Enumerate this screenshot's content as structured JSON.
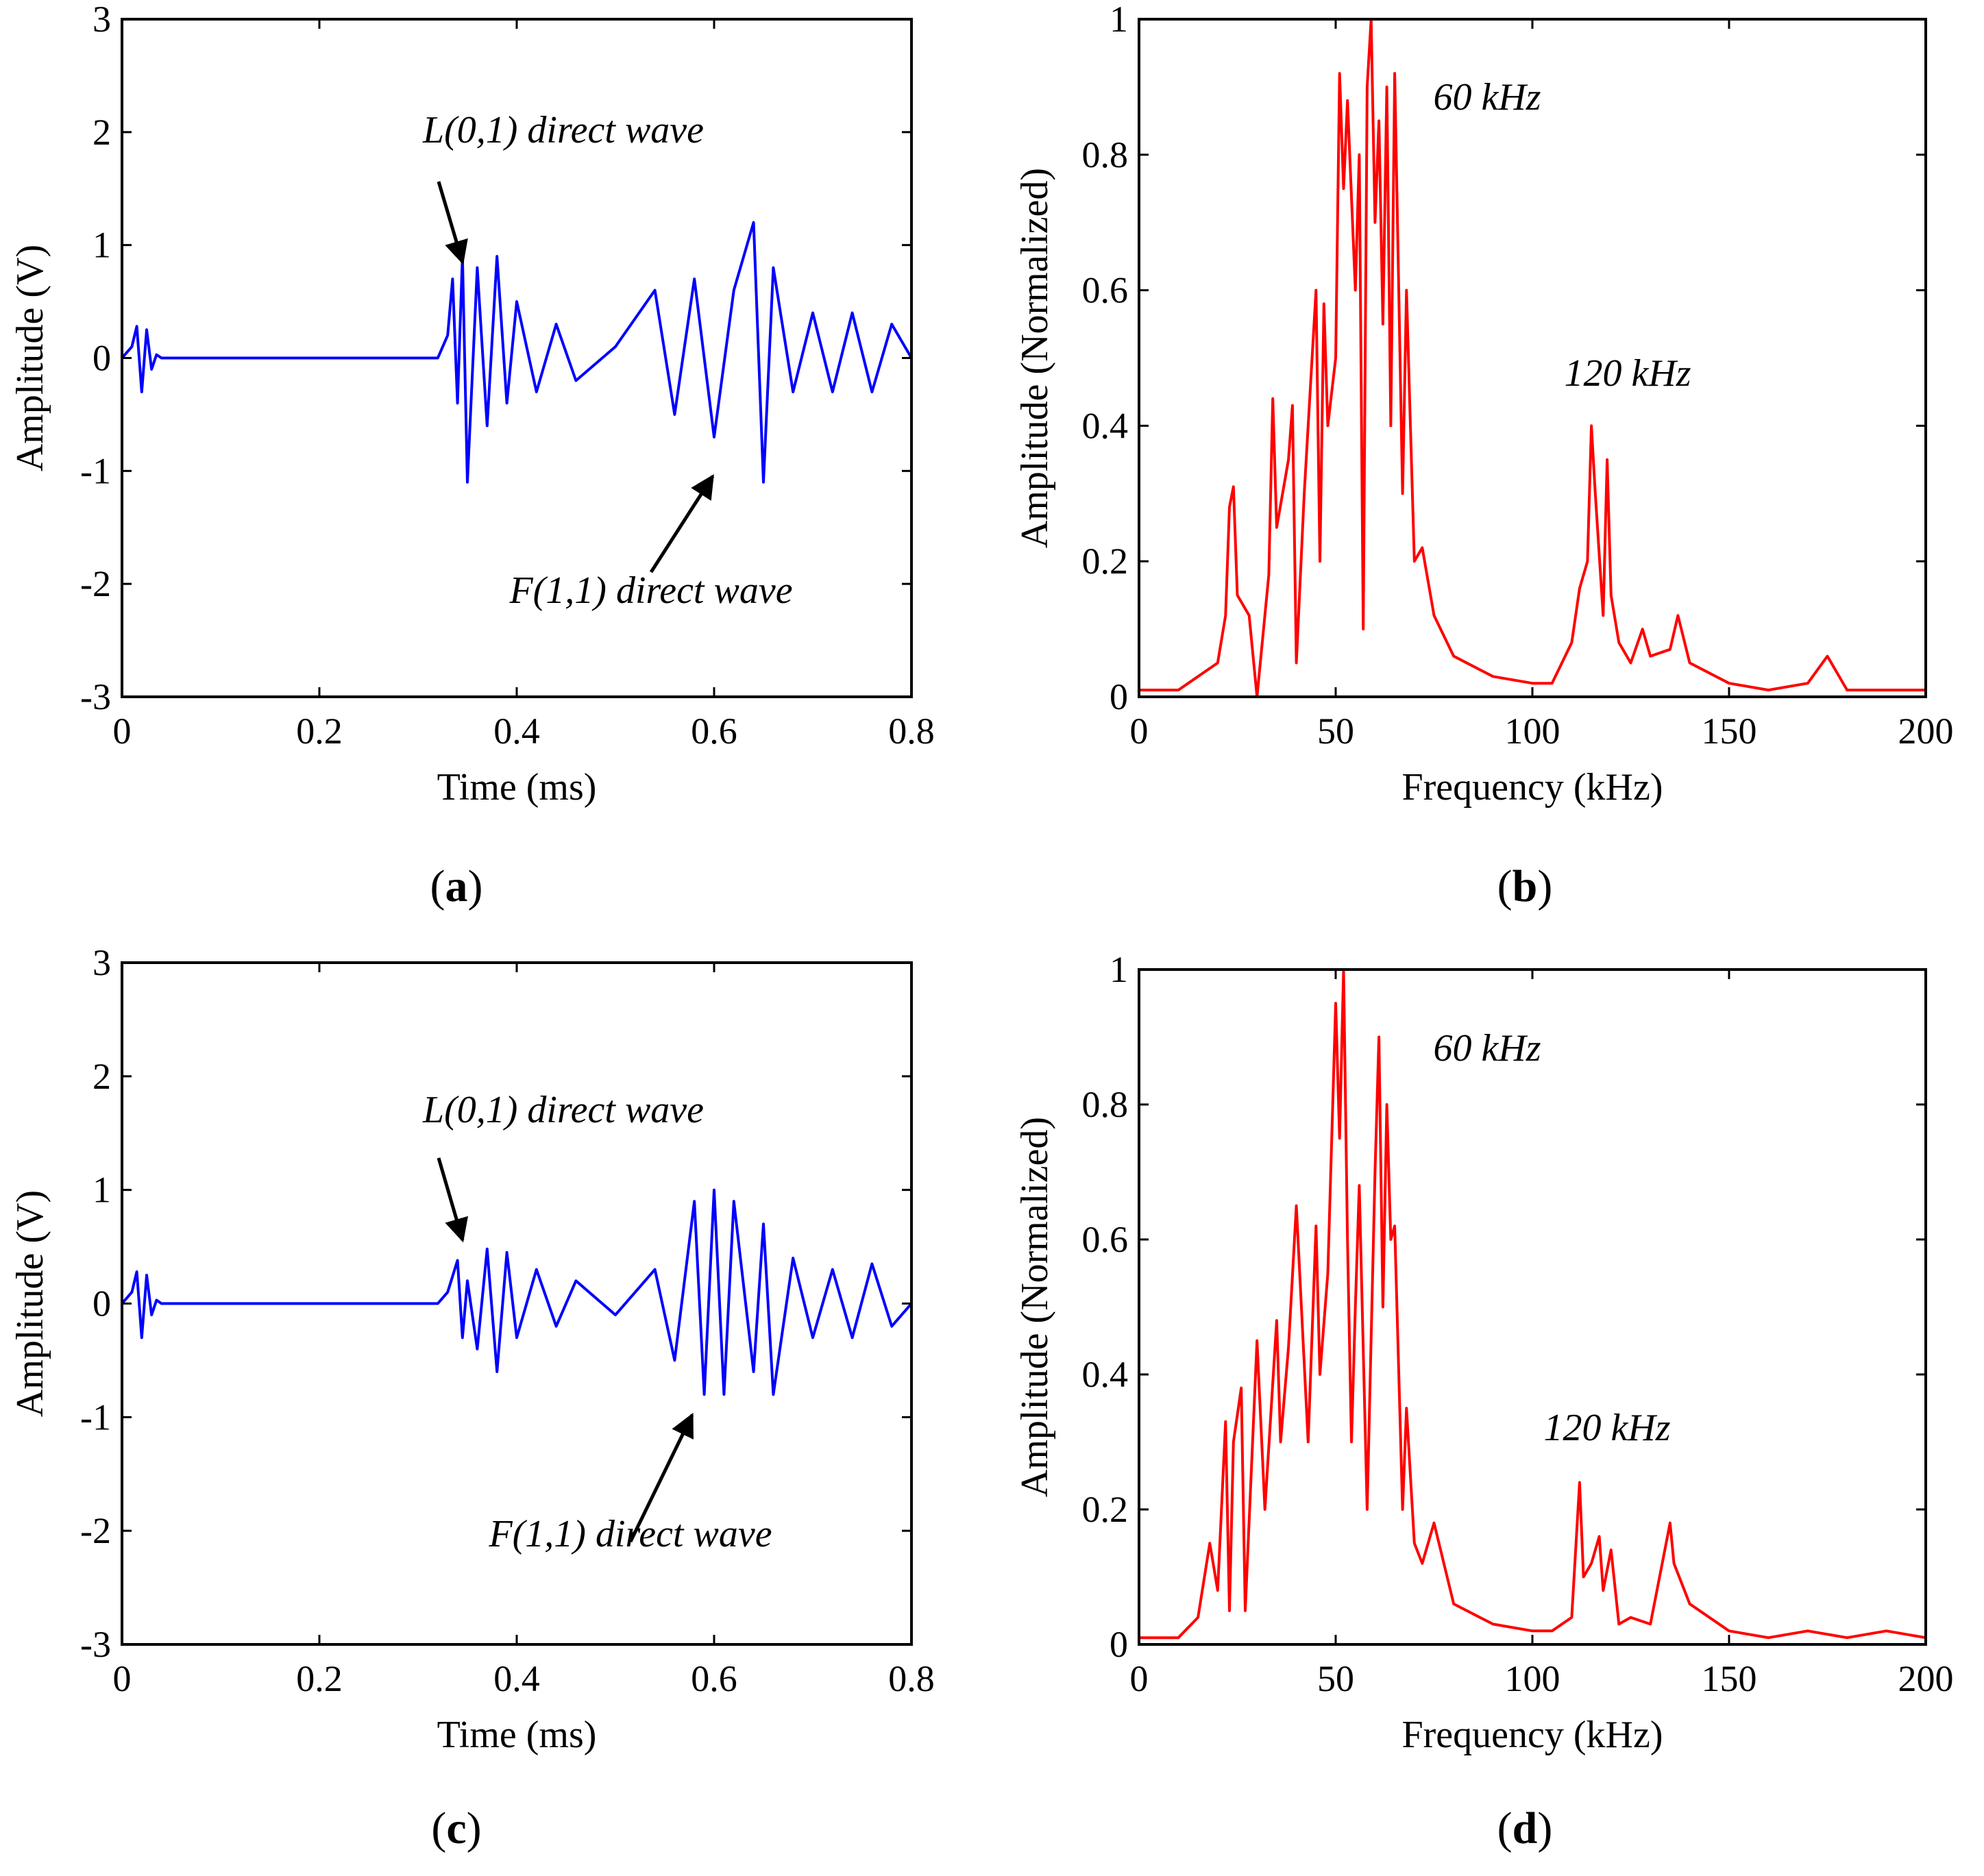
{
  "figure": {
    "panels": [
      {
        "id": "a",
        "caption_letter": "a"
      },
      {
        "id": "b",
        "caption_letter": "b"
      },
      {
        "id": "c",
        "caption_letter": "c"
      },
      {
        "id": "d",
        "caption_letter": "d"
      }
    ]
  },
  "colors": {
    "time_signal": "#0000ff",
    "spectrum": "#ff0000",
    "axes": "#000000"
  },
  "chart_data": [
    {
      "id": "a",
      "type": "line",
      "xlabel": "Time (ms)",
      "ylabel": "Amplitude (V)",
      "xlim": [
        0,
        0.8
      ],
      "ylim": [
        -3,
        3
      ],
      "xticks": [
        "0",
        "0.2",
        "0.4",
        "0.6",
        "0.8"
      ],
      "yticks": [
        "-3",
        "-2",
        "-1",
        "0",
        "1",
        "2",
        "3"
      ],
      "grid": false,
      "annotations": [
        {
          "text": "L(0,1) direct wave",
          "points_to": {
            "x": 0.34,
            "y": 0.85
          }
        },
        {
          "text": "F(1,1) direct wave",
          "points_to": {
            "x": 0.6,
            "y": -1.0
          }
        }
      ],
      "series": [
        {
          "color": "#0000ff",
          "x": [
            0.0,
            0.01,
            0.015,
            0.02,
            0.025,
            0.03,
            0.035,
            0.04,
            0.05,
            0.1,
            0.2,
            0.3,
            0.32,
            0.33,
            0.335,
            0.34,
            0.345,
            0.35,
            0.36,
            0.37,
            0.38,
            0.39,
            0.4,
            0.42,
            0.44,
            0.46,
            0.5,
            0.54,
            0.56,
            0.58,
            0.6,
            0.62,
            0.64,
            0.65,
            0.66,
            0.68,
            0.7,
            0.72,
            0.74,
            0.76,
            0.78,
            0.8
          ],
          "values": [
            0.0,
            0.1,
            0.28,
            -0.3,
            0.25,
            -0.1,
            0.03,
            0.0,
            0.0,
            0.0,
            0.0,
            0.0,
            0.0,
            0.2,
            0.7,
            -0.4,
            0.9,
            -1.1,
            0.8,
            -0.6,
            0.9,
            -0.4,
            0.5,
            -0.3,
            0.3,
            -0.2,
            0.1,
            0.6,
            -0.5,
            0.7,
            -0.7,
            0.6,
            1.2,
            -1.1,
            0.8,
            -0.3,
            0.4,
            -0.3,
            0.4,
            -0.3,
            0.3,
            0.0
          ]
        }
      ]
    },
    {
      "id": "b",
      "type": "line",
      "xlabel": "Frequency (kHz)",
      "ylabel": "Amplitude (Normalized)",
      "xlim": [
        0,
        200
      ],
      "ylim": [
        0,
        1
      ],
      "xticks": [
        "0",
        "50",
        "100",
        "150",
        "200"
      ],
      "yticks": [
        "0",
        "0.2",
        "0.4",
        "0.6",
        "0.8",
        "1"
      ],
      "grid": false,
      "annotations": [
        {
          "text": "60 kHz"
        },
        {
          "text": "120 kHz"
        }
      ],
      "series": [
        {
          "color": "#ff0000",
          "x": [
            0,
            10,
            15,
            20,
            22,
            23,
            24,
            25,
            28,
            30,
            33,
            34,
            35,
            38,
            39,
            40,
            42,
            45,
            46,
            47,
            48,
            50,
            51,
            52,
            53,
            55,
            56,
            57,
            58,
            59,
            60,
            61,
            62,
            63,
            64,
            65,
            67,
            68,
            70,
            72,
            75,
            80,
            90,
            100,
            105,
            110,
            112,
            114,
            115,
            116,
            118,
            119,
            120,
            122,
            125,
            128,
            130,
            135,
            137,
            140,
            150,
            160,
            170,
            175,
            180,
            200
          ],
          "values": [
            0.01,
            0.01,
            0.03,
            0.05,
            0.12,
            0.28,
            0.31,
            0.15,
            0.12,
            0.0,
            0.18,
            0.44,
            0.25,
            0.35,
            0.43,
            0.05,
            0.3,
            0.6,
            0.2,
            0.58,
            0.4,
            0.5,
            0.92,
            0.75,
            0.88,
            0.6,
            0.8,
            0.1,
            0.9,
            1.0,
            0.7,
            0.85,
            0.55,
            0.9,
            0.4,
            0.92,
            0.3,
            0.6,
            0.2,
            0.22,
            0.12,
            0.06,
            0.03,
            0.02,
            0.02,
            0.08,
            0.16,
            0.2,
            0.4,
            0.3,
            0.12,
            0.35,
            0.15,
            0.08,
            0.05,
            0.1,
            0.06,
            0.07,
            0.12,
            0.05,
            0.02,
            0.01,
            0.02,
            0.06,
            0.01,
            0.01
          ]
        }
      ]
    },
    {
      "id": "c",
      "type": "line",
      "xlabel": "Time (ms)",
      "ylabel": "Amplitude (V)",
      "xlim": [
        0,
        0.8
      ],
      "ylim": [
        -3,
        3
      ],
      "xticks": [
        "0",
        "0.2",
        "0.4",
        "0.6",
        "0.8"
      ],
      "yticks": [
        "-3",
        "-2",
        "-1",
        "0",
        "1",
        "2",
        "3"
      ],
      "grid": false,
      "annotations": [
        {
          "text": "L(0,1) direct wave",
          "points_to": {
            "x": 0.34,
            "y": 0.6
          }
        },
        {
          "text": "F(1,1) direct wave",
          "points_to": {
            "x": 0.58,
            "y": -0.9
          }
        }
      ],
      "series": [
        {
          "color": "#0000ff",
          "x": [
            0.0,
            0.01,
            0.015,
            0.02,
            0.025,
            0.03,
            0.035,
            0.04,
            0.05,
            0.1,
            0.2,
            0.3,
            0.32,
            0.33,
            0.34,
            0.345,
            0.35,
            0.36,
            0.37,
            0.38,
            0.39,
            0.4,
            0.42,
            0.44,
            0.46,
            0.5,
            0.54,
            0.56,
            0.58,
            0.59,
            0.6,
            0.61,
            0.62,
            0.64,
            0.65,
            0.66,
            0.68,
            0.7,
            0.72,
            0.74,
            0.76,
            0.78,
            0.8
          ],
          "values": [
            0.0,
            0.1,
            0.28,
            -0.3,
            0.25,
            -0.1,
            0.03,
            0.0,
            0.0,
            0.0,
            0.0,
            0.0,
            0.0,
            0.1,
            0.38,
            -0.3,
            0.2,
            -0.4,
            0.48,
            -0.6,
            0.45,
            -0.3,
            0.3,
            -0.2,
            0.2,
            -0.1,
            0.3,
            -0.5,
            0.9,
            -0.8,
            1.0,
            -0.8,
            0.9,
            -0.6,
            0.7,
            -0.8,
            0.4,
            -0.3,
            0.3,
            -0.3,
            0.35,
            -0.2,
            0.0
          ]
        }
      ]
    },
    {
      "id": "d",
      "type": "line",
      "xlabel": "Frequency (kHz)",
      "ylabel": "Amplitude (Normalized)",
      "xlim": [
        0,
        200
      ],
      "ylim": [
        0,
        1
      ],
      "xticks": [
        "0",
        "50",
        "100",
        "150",
        "200"
      ],
      "yticks": [
        "0",
        "0.2",
        "0.4",
        "0.6",
        "0.8",
        "1"
      ],
      "grid": false,
      "annotations": [
        {
          "text": "60 kHz"
        },
        {
          "text": "120 kHz"
        }
      ],
      "series": [
        {
          "color": "#ff0000",
          "x": [
            0,
            10,
            15,
            18,
            20,
            22,
            23,
            24,
            26,
            27,
            30,
            32,
            35,
            36,
            38,
            40,
            43,
            45,
            46,
            48,
            50,
            51,
            52,
            53,
            54,
            55,
            56,
            58,
            60,
            61,
            62,
            63,
            64,
            65,
            67,
            68,
            70,
            72,
            75,
            80,
            90,
            100,
            105,
            110,
            112,
            113,
            115,
            117,
            118,
            120,
            122,
            125,
            130,
            134,
            135,
            136,
            140,
            150,
            160,
            170,
            180,
            190,
            200
          ],
          "values": [
            0.01,
            0.01,
            0.04,
            0.15,
            0.08,
            0.33,
            0.05,
            0.3,
            0.38,
            0.05,
            0.45,
            0.2,
            0.48,
            0.3,
            0.44,
            0.65,
            0.3,
            0.62,
            0.4,
            0.55,
            0.95,
            0.75,
            1.0,
            0.6,
            0.3,
            0.5,
            0.68,
            0.2,
            0.7,
            0.9,
            0.5,
            0.8,
            0.6,
            0.62,
            0.2,
            0.35,
            0.15,
            0.12,
            0.18,
            0.06,
            0.03,
            0.02,
            0.02,
            0.04,
            0.24,
            0.1,
            0.12,
            0.16,
            0.08,
            0.14,
            0.03,
            0.04,
            0.03,
            0.15,
            0.18,
            0.12,
            0.06,
            0.02,
            0.01,
            0.02,
            0.01,
            0.02,
            0.01
          ]
        }
      ]
    }
  ]
}
